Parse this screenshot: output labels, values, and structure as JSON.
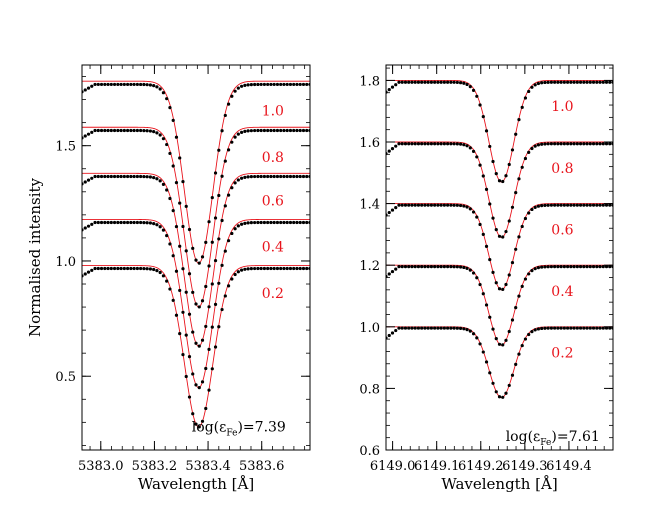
{
  "chart_data": [
    {
      "type": "line",
      "xlabel": "Wavelength [Å]",
      "ylabel": "Normalised intensity",
      "xlim": [
        5382.93,
        5383.78
      ],
      "ylim": [
        0.18,
        1.85
      ],
      "xticks": [
        {
          "value": 5383.0,
          "label": "5383.0"
        },
        {
          "value": 5383.2,
          "label": "5383.2"
        },
        {
          "value": 5383.4,
          "label": "5383.4"
        },
        {
          "value": 5383.6,
          "label": "5383.6"
        }
      ],
      "yticks": [
        {
          "value": 0.5,
          "label": "0.5"
        },
        {
          "value": 1.0,
          "label": "1.0"
        },
        {
          "value": 1.5,
          "label": "1.5"
        }
      ],
      "line_center": 5383.365,
      "annotation": {
        "prefix": "log(ε",
        "subscript": "Fe",
        "suffix": ")=7.39",
        "x": 5383.69,
        "y": 0.26
      },
      "series": [
        {
          "label": "1.0",
          "continuum": 1.78,
          "minimum": 0.99,
          "label_x": 5383.6,
          "label_y": 1.63
        },
        {
          "label": "0.8",
          "continuum": 1.58,
          "minimum": 0.8,
          "label_x": 5383.6,
          "label_y": 1.43
        },
        {
          "label": "0.6",
          "continuum": 1.38,
          "minimum": 0.63,
          "label_x": 5383.6,
          "label_y": 1.24
        },
        {
          "label": "0.4",
          "continuum": 1.18,
          "minimum": 0.45,
          "label_x": 5383.6,
          "label_y": 1.04
        },
        {
          "label": "0.2",
          "continuum": 0.98,
          "minimum": 0.28,
          "label_x": 5383.6,
          "label_y": 0.84
        }
      ]
    },
    {
      "type": "line",
      "xlabel": "Wavelength [Å]",
      "ylabel": "",
      "xlim": [
        6148.985,
        6149.5
      ],
      "ylim": [
        0.6,
        1.85
      ],
      "xticks": [
        {
          "value": 6149.0,
          "label": "6149.0"
        },
        {
          "value": 6149.1,
          "label": "6149.1"
        },
        {
          "value": 6149.2,
          "label": "6149.2"
        },
        {
          "value": 6149.3,
          "label": "6149.3"
        },
        {
          "value": 6149.4,
          "label": "6149.4"
        }
      ],
      "yticks": [
        {
          "value": 0.6,
          "label": "0.6"
        },
        {
          "value": 0.8,
          "label": "0.8"
        },
        {
          "value": 1.0,
          "label": "1.0"
        },
        {
          "value": 1.2,
          "label": "1.2"
        },
        {
          "value": 1.4,
          "label": "1.4"
        },
        {
          "value": 1.6,
          "label": "1.6"
        },
        {
          "value": 1.8,
          "label": "1.8"
        }
      ],
      "line_center": 6149.247,
      "annotation": {
        "prefix": "log(ε",
        "subscript": "Fe",
        "suffix": ")=7.61",
        "x": 6149.47,
        "y": 0.63
      },
      "series": [
        {
          "label": "1.0",
          "continuum": 1.8,
          "minimum": 1.47,
          "label_x": 6149.36,
          "label_y": 1.7
        },
        {
          "label": "0.8",
          "continuum": 1.6,
          "minimum": 1.29,
          "label_x": 6149.36,
          "label_y": 1.5
        },
        {
          "label": "0.6",
          "continuum": 1.4,
          "minimum": 1.12,
          "label_x": 6149.36,
          "label_y": 1.3
        },
        {
          "label": "0.4",
          "continuum": 1.2,
          "minimum": 0.94,
          "label_x": 6149.36,
          "label_y": 1.1
        },
        {
          "label": "0.2",
          "continuum": 1.0,
          "minimum": 0.77,
          "label_x": 6149.36,
          "label_y": 0.9
        }
      ]
    }
  ]
}
